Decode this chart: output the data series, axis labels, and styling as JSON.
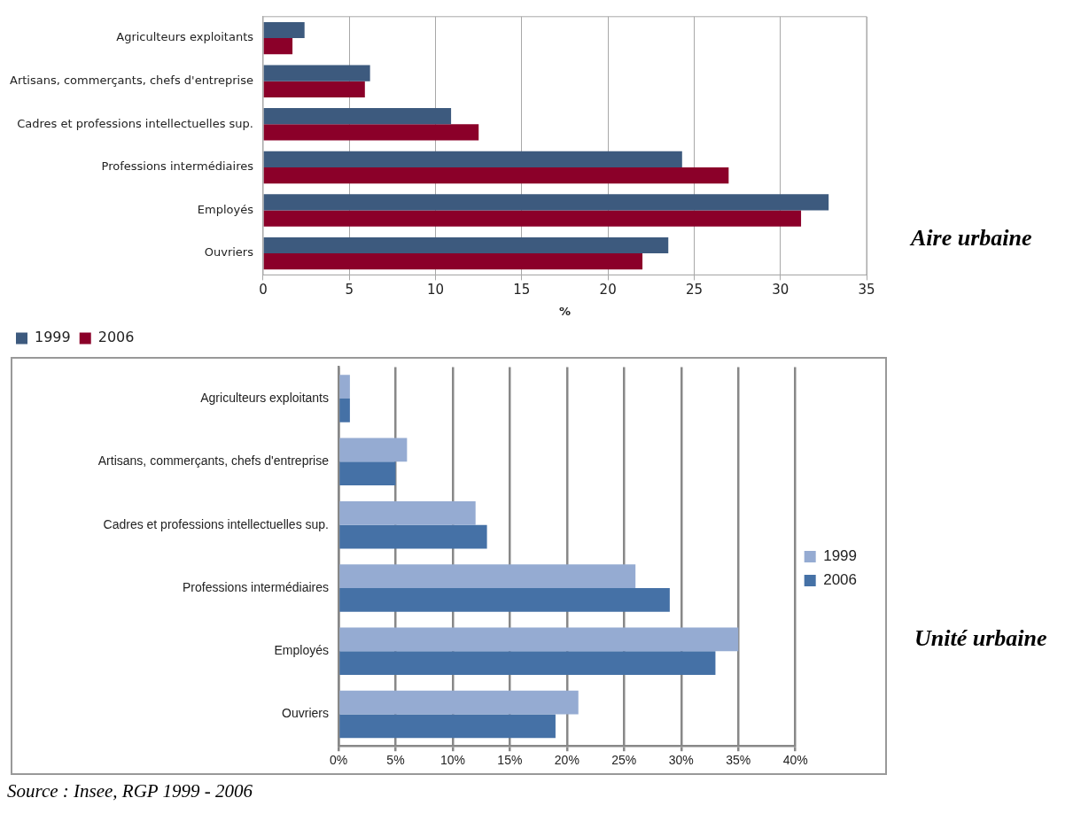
{
  "chart_data": [
    {
      "type": "bar",
      "orientation": "horizontal",
      "annotations": [
        "Aire urbaine"
      ],
      "xlabel": "%",
      "categories": [
        "Agriculteurs exploitants",
        "Artisans, commerçants, chefs d'entreprise",
        "Cadres et professions intellectuelles sup.",
        "Professions intermédiaires",
        "Employés",
        "Ouvriers"
      ],
      "series": [
        {
          "name": "1999",
          "color": "#3d5a7e",
          "values": [
            2.4,
            6.2,
            10.9,
            24.3,
            32.8,
            23.5
          ]
        },
        {
          "name": "2006",
          "color": "#8b0029",
          "values": [
            1.7,
            5.9,
            12.5,
            27.0,
            31.2,
            22.0
          ]
        }
      ],
      "xlim": [
        0,
        35
      ],
      "xticks": [
        0,
        5,
        10,
        15,
        20,
        25,
        30,
        35
      ],
      "grid": "x",
      "legend": "bottom left"
    },
    {
      "type": "bar",
      "orientation": "horizontal",
      "categories": [
        "Agriculteurs exploitants",
        "Artisans, commerçants, chefs d'entreprise",
        "Cadres et professions intellectuelles sup.",
        "Professions intermédiaires",
        "Employés",
        "Ouvriers"
      ],
      "series": [
        {
          "name": "1999",
          "color": "#95abd2",
          "values": [
            1,
            6,
            12,
            26,
            35,
            21
          ]
        },
        {
          "name": "2006",
          "color": "#4571a6",
          "values": [
            1,
            5,
            13,
            29,
            33,
            19
          ]
        }
      ],
      "xlim": [
        0,
        40
      ],
      "xticks": [
        {
          "value": 0,
          "label": "0%"
        },
        {
          "value": 5,
          "label": "5%"
        },
        {
          "value": 10,
          "label": "10%"
        },
        {
          "value": 15,
          "label": "15%"
        },
        {
          "value": 20,
          "label": "20%"
        },
        {
          "value": 25,
          "label": "25%"
        },
        {
          "value": 30,
          "label": "30%"
        },
        {
          "value": 35,
          "label": "35%"
        },
        {
          "value": 40,
          "label": "40%"
        }
      ],
      "grid": "x",
      "legend": "right",
      "annotations": [
        "Unité urbaine",
        "Source : Insee, RGP 1999 - 2006"
      ]
    }
  ]
}
